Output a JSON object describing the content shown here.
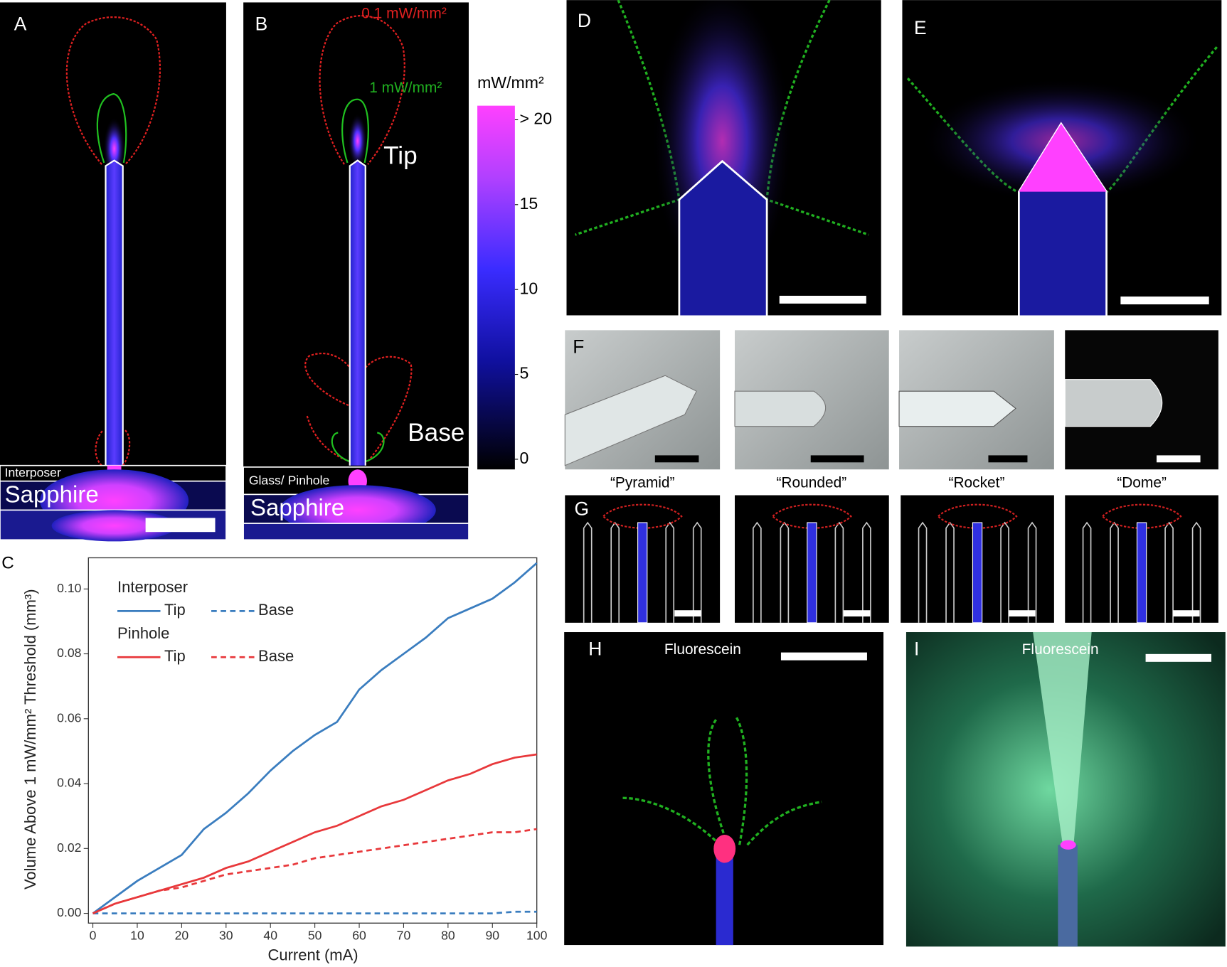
{
  "panel_a": {
    "letter": "A",
    "interposer": "Interposer",
    "sapphire": "Sapphire"
  },
  "panel_b": {
    "letter": "B",
    "contour_red": "0.1 mW/mm²",
    "contour_green": "1 mW/mm²",
    "tip": "Tip",
    "base": "Base",
    "glass": "Glass/ Pinhole",
    "sapphire": "Sapphire"
  },
  "colorbar": {
    "title": "mW/mm²",
    "clim": [
      0,
      20
    ],
    "ticks": [
      {
        "value": 20,
        "label": "> 20"
      },
      15,
      10,
      5,
      0
    ]
  },
  "panel_d": {
    "letter": "D"
  },
  "panel_e": {
    "letter": "E"
  },
  "panel_f": {
    "letter": "F",
    "shapes": [
      "“Pyramid”",
      "“Rounded”",
      "“Rocket”",
      "“Dome”"
    ]
  },
  "panel_g": {
    "letter": "G"
  },
  "panel_h": {
    "letter": "H",
    "label": "Fluorescein"
  },
  "panel_i": {
    "letter": "I",
    "label": "Fluorescein"
  },
  "chart_data": {
    "type": "line",
    "panel": "C",
    "x_label": "Current (mA)",
    "y_label": "Volume Above 1 mW/mm² Threshold (mm³)",
    "x": [
      0,
      5,
      10,
      15,
      20,
      25,
      30,
      35,
      40,
      45,
      50,
      55,
      60,
      65,
      70,
      75,
      80,
      85,
      90,
      95,
      100
    ],
    "xlim": [
      -1,
      100
    ],
    "ylim": [
      -0.003,
      0.1096
    ],
    "xticks": [
      0,
      10,
      20,
      30,
      40,
      50,
      60,
      70,
      80,
      90,
      100
    ],
    "yticks": [
      {
        "value": 0,
        "label": "0.00"
      },
      0.02,
      0.04,
      0.06,
      0.08,
      {
        "value": 0.1,
        "label": "0.10"
      }
    ],
    "series": [
      {
        "name": "Tip",
        "group": "Interposer",
        "color": "#3a7dbf",
        "dash": false,
        "values": [
          0,
          0.005,
          0.01,
          0.014,
          0.018,
          0.026,
          0.031,
          0.037,
          0.044,
          0.05,
          0.055,
          0.059,
          0.069,
          0.075,
          0.08,
          0.085,
          0.091,
          0.094,
          0.097,
          0.102,
          0.108
        ]
      },
      {
        "name": "Base",
        "group": "Interposer",
        "color": "#3a7dbf",
        "dash": true,
        "values": [
          0,
          0,
          0,
          0,
          0,
          0,
          0,
          0,
          0,
          0,
          0,
          0,
          0,
          0,
          0,
          0,
          0,
          0,
          0,
          0.0005,
          0.0005
        ]
      },
      {
        "name": "Tip",
        "group": "Pinhole",
        "color": "#e8383b",
        "dash": false,
        "values": [
          0,
          0.003,
          0.005,
          0.007,
          0.009,
          0.011,
          0.014,
          0.016,
          0.019,
          0.022,
          0.025,
          0.027,
          0.03,
          0.033,
          0.035,
          0.038,
          0.041,
          0.043,
          0.046,
          0.048,
          0.049
        ]
      },
      {
        "name": "Base",
        "group": "Pinhole",
        "color": "#e8383b",
        "dash": true,
        "values": [
          0,
          0.003,
          0.005,
          0.007,
          0.008,
          0.01,
          0.012,
          0.013,
          0.014,
          0.015,
          0.017,
          0.018,
          0.019,
          0.02,
          0.021,
          0.022,
          0.023,
          0.024,
          0.025,
          0.025,
          0.026
        ]
      }
    ]
  }
}
